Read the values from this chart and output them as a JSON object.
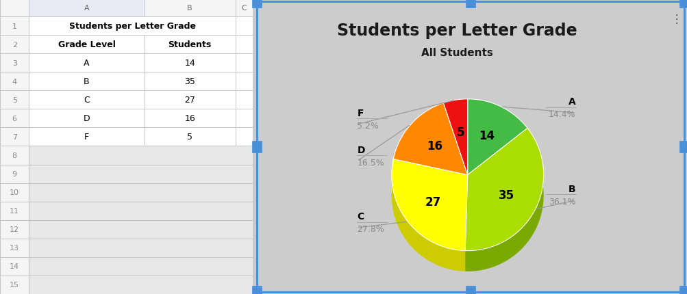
{
  "title": "Students per Letter Grade",
  "subtitle": "All Students",
  "grades": [
    "A",
    "B",
    "C",
    "D",
    "F"
  ],
  "values": [
    14,
    35,
    27,
    16,
    5
  ],
  "percentages": [
    "14.4%",
    "36.1%",
    "27.8%",
    "16.5%",
    "5.2%"
  ],
  "colors": [
    "#44bb44",
    "#aadd00",
    "#ffff00",
    "#ff8800",
    "#ee1111"
  ],
  "dark_colors": [
    "#2d8c2d",
    "#7aaa00",
    "#cccc00",
    "#cc6600",
    "#bb0000"
  ],
  "edge_colors": [
    "#228822",
    "#669900",
    "#aaaa00",
    "#aa4400",
    "#880000"
  ],
  "table_title": "Students per Letter Grade",
  "col_headers": [
    "Grade Level",
    "Students"
  ],
  "data_rows": [
    [
      "A",
      "14"
    ],
    [
      "B",
      "35"
    ],
    [
      "C",
      "27"
    ],
    [
      "D",
      "16"
    ],
    [
      "F",
      "5"
    ]
  ],
  "n_rows": 15,
  "title_fontsize": 17,
  "subtitle_fontsize": 11,
  "label_fontsize": 10,
  "pct_fontsize": 9,
  "value_fontsize": 12
}
